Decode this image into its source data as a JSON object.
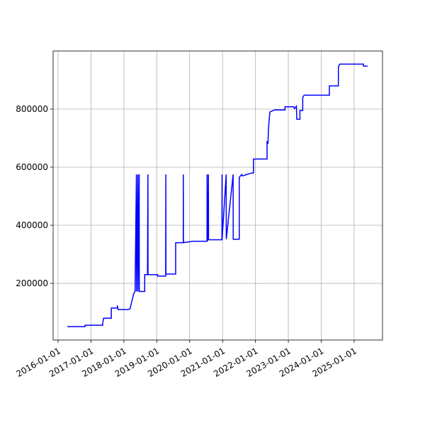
{
  "chart_data": {
    "type": "line",
    "color": "#0000ff",
    "grid": true,
    "x": [
      "2016-04-12",
      "2016-10-27",
      "2016-10-27",
      "2017-05-10",
      "2017-05-10",
      "2017-05-20",
      "2017-08-14",
      "2017-08-14",
      "2017-10-20",
      "2017-10-20",
      "2017-10-28",
      "2018-02-10",
      "2018-03-10",
      "2018-04-20",
      "2018-05-05",
      "2018-05-20",
      "2018-05-21",
      "2018-06-05",
      "2018-06-06",
      "2018-06-20",
      "2018-06-21",
      "2018-08-20",
      "2018-08-20",
      "2018-09-20",
      "2018-09-25",
      "2018-09-26",
      "2019-01-10",
      "2019-01-10",
      "2019-04-10",
      "2019-04-12",
      "2019-04-13",
      "2019-07-30",
      "2019-07-30",
      "2019-10-22",
      "2019-10-23",
      "2019-10-24",
      "2020-02-01",
      "2020-07-12",
      "2020-07-13",
      "2020-07-14",
      "2020-07-20",
      "2020-07-28",
      "2020-07-29",
      "2020-12-25",
      "2020-12-26",
      "2020-12-27",
      "2021-02-10",
      "2021-02-11",
      "2021-04-28",
      "2021-04-29",
      "2021-07-05",
      "2021-07-05",
      "2021-08-01",
      "2021-08-10",
      "2021-10-01",
      "2021-11-20",
      "2021-12-10",
      "2021-12-10",
      "2022-05-10",
      "2022-05-10",
      "2022-05-20",
      "2022-05-25",
      "2022-06-10",
      "2022-08-01",
      "2022-11-25",
      "2022-11-25",
      "2023-03-01",
      "2023-03-10",
      "2023-04-01",
      "2023-04-05",
      "2023-05-10",
      "2023-05-10",
      "2023-06-10",
      "2023-06-10",
      "2023-06-25",
      "2024-04-01",
      "2024-04-01",
      "2024-07-10",
      "2024-07-10",
      "2024-07-25",
      "2025-04-15",
      "2025-04-15",
      "2025-06-01"
    ],
    "values": [
      51000,
      51000,
      56000,
      56000,
      62000,
      80000,
      80000,
      115000,
      115000,
      124000,
      110000,
      110000,
      112000,
      165000,
      172000,
      575000,
      172000,
      575000,
      172000,
      575000,
      172000,
      172000,
      230000,
      230000,
      575000,
      230000,
      230000,
      225000,
      225000,
      575000,
      232000,
      232000,
      340000,
      340000,
      575000,
      340000,
      345000,
      345000,
      575000,
      345000,
      350000,
      575000,
      350000,
      350000,
      575000,
      352000,
      575000,
      352000,
      575000,
      352000,
      352000,
      565000,
      575000,
      570000,
      575000,
      580000,
      580000,
      628000,
      628000,
      690000,
      680000,
      730000,
      790000,
      797000,
      797000,
      808000,
      808000,
      802000,
      810000,
      765000,
      765000,
      795000,
      795000,
      840000,
      848000,
      848000,
      880000,
      880000,
      945000,
      955000,
      955000,
      948000,
      948000
    ],
    "xlim": [
      "2015-11-07",
      "2025-11-12"
    ],
    "xticks": [
      "2016-01-01",
      "2017-01-01",
      "2018-01-01",
      "2019-01-01",
      "2020-01-01",
      "2021-01-01",
      "2022-01-01",
      "2023-01-01",
      "2024-01-01",
      "2025-01-01"
    ],
    "ylim": [
      5000,
      1000000
    ],
    "yticks": [
      200000,
      400000,
      600000,
      800000
    ]
  }
}
